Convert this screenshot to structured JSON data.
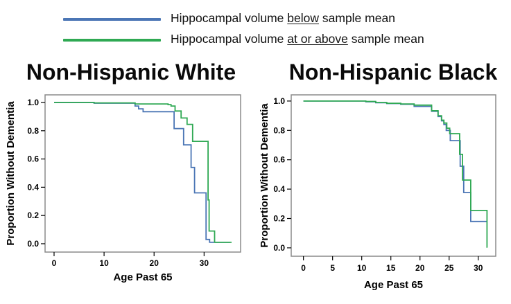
{
  "colors": {
    "below_line": "#4b76b5",
    "above_line": "#2fa953",
    "frame": "#8a8a8a",
    "text": "#000000"
  },
  "legend": {
    "position": "top",
    "items": [
      {
        "series_key": "below",
        "color_key": "below_line",
        "prefix": "Hippocampal volume ",
        "underlined": "below",
        "suffix": " sample mean"
      },
      {
        "series_key": "above",
        "color_key": "above_line",
        "prefix": "Hippocampal volume ",
        "underlined": "at or above",
        "suffix": " sample mean"
      }
    ]
  },
  "chart_data": [
    {
      "type": "line",
      "subtype": "kaplan_meier_step",
      "title": "Non-Hispanic White",
      "xlabel": "Age Past 65",
      "ylabel": "Proportion Without Dementia",
      "xlim": [
        -1.8,
        37.3
      ],
      "ylim": [
        -0.059,
        1.054
      ],
      "xticks": [
        0,
        10,
        20,
        30
      ],
      "yticks": [
        0.0,
        0.2,
        0.4,
        0.6,
        0.8,
        1.0
      ],
      "grid": false,
      "series": [
        {
          "name": "Hippocampal volume below sample mean",
          "color_key": "below_line",
          "points": [
            [
              0,
              1.0
            ],
            [
              8,
              0.995
            ],
            [
              16.2,
              0.975
            ],
            [
              16.9,
              0.955
            ],
            [
              17.8,
              0.935
            ],
            [
              24.0,
              0.815
            ],
            [
              25.9,
              0.7
            ],
            [
              27.4,
              0.54
            ],
            [
              28.1,
              0.36
            ],
            [
              30.4,
              0.03
            ],
            [
              31.1,
              0.01
            ]
          ],
          "end_x": 35.2
        },
        {
          "name": "Hippocampal volume at or above sample mean",
          "color_key": "above_line",
          "points": [
            [
              0,
              1.0
            ],
            [
              8,
              0.997
            ],
            [
              16.2,
              0.99
            ],
            [
              22.8,
              0.985
            ],
            [
              23.4,
              0.975
            ],
            [
              24.2,
              0.94
            ],
            [
              25.4,
              0.89
            ],
            [
              26.6,
              0.845
            ],
            [
              27.7,
              0.725
            ],
            [
              30.8,
              0.31
            ],
            [
              31.0,
              0.09
            ],
            [
              32.1,
              0.01
            ]
          ],
          "end_x": 35.5
        }
      ]
    },
    {
      "type": "line",
      "subtype": "kaplan_meier_step",
      "title": "Non-Hispanic Black",
      "xlabel": "Age Past 65",
      "ylabel": "Proportion Without Dementia",
      "xlim": [
        -2.1,
        33.0
      ],
      "ylim": [
        -0.057,
        1.042
      ],
      "xticks": [
        0,
        5,
        10,
        15,
        20,
        25,
        30
      ],
      "yticks": [
        0.0,
        0.2,
        0.4,
        0.6,
        0.8,
        1.0
      ],
      "grid": false,
      "series": [
        {
          "name": "Hippocampal volume below sample mean",
          "color_key": "below_line",
          "points": [
            [
              0,
              1.0
            ],
            [
              10.7,
              0.995
            ],
            [
              12.4,
              0.988
            ],
            [
              14.3,
              0.983
            ],
            [
              16.7,
              0.978
            ],
            [
              19.0,
              0.963
            ],
            [
              22.0,
              0.93
            ],
            [
              23.1,
              0.895
            ],
            [
              23.7,
              0.865
            ],
            [
              24.1,
              0.84
            ],
            [
              24.5,
              0.8
            ],
            [
              25.2,
              0.73
            ],
            [
              26.9,
              0.556
            ],
            [
              27.5,
              0.377
            ],
            [
              28.7,
              0.18
            ]
          ],
          "end_x": 31.5
        },
        {
          "name": "Hippocampal volume at or above sample mean",
          "color_key": "above_line",
          "points": [
            [
              0,
              1.0
            ],
            [
              10.7,
              0.997
            ],
            [
              12.4,
              0.99
            ],
            [
              14.3,
              0.985
            ],
            [
              16.7,
              0.98
            ],
            [
              19.0,
              0.972
            ],
            [
              22.0,
              0.934
            ],
            [
              23.1,
              0.9
            ],
            [
              23.7,
              0.87
            ],
            [
              24.1,
              0.85
            ],
            [
              24.6,
              0.815
            ],
            [
              25.1,
              0.778
            ],
            [
              26.8,
              0.637
            ],
            [
              27.3,
              0.462
            ],
            [
              28.7,
              0.255
            ],
            [
              31.5,
              0.005
            ]
          ],
          "end_x": 31.6
        }
      ]
    }
  ]
}
